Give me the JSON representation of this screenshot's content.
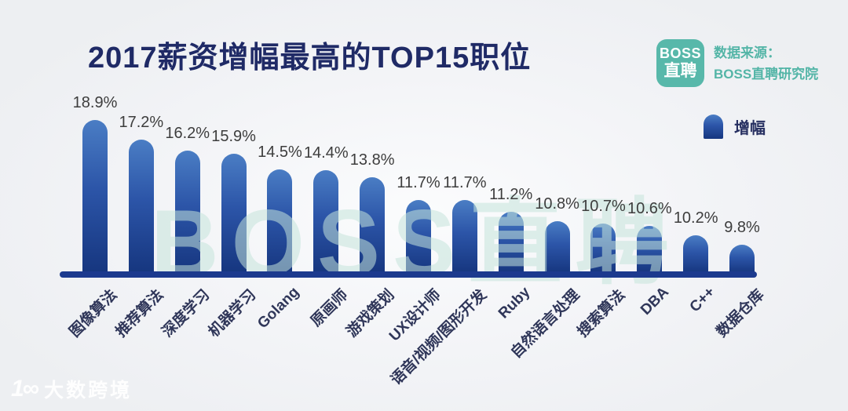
{
  "page": {
    "title": "2017薪资增幅最高的TOP15职位"
  },
  "source": {
    "logo_line1": "BOSS",
    "logo_line2": "直聘",
    "label_line1": "数据来源：",
    "label_line2": "BOSS直聘研究院"
  },
  "legend": {
    "label": "增幅"
  },
  "watermark": {
    "text": "BOSS直聘"
  },
  "footer": {
    "glyph": "1∞",
    "brand": "大数跨境"
  },
  "colors": {
    "background": "#eef0f3",
    "title_navy": "#1f2a66",
    "bar_gradient_top": "#4a7dc4",
    "bar_gradient_bottom": "#16367f",
    "axis_navy": "#1c3a8e",
    "brand_teal": "#58b8aa",
    "value_label_gray": "#3d3d3d",
    "category_label_navy": "#2f3659",
    "watermark_teal": "#c5e3da"
  },
  "chart_data": {
    "type": "bar",
    "title": "2017薪资增幅最高的TOP15职位",
    "categories": [
      "图像算法",
      "推荐算法",
      "深度学习",
      "机器学习",
      "Golang",
      "原画师",
      "游戏策划",
      "UX设计师",
      "语音/视频/图形开发",
      "Ruby",
      "自然语言处理",
      "搜索算法",
      "DBA",
      "C++",
      "数据仓库"
    ],
    "values": [
      18.9,
      17.2,
      16.2,
      15.9,
      14.5,
      14.4,
      13.8,
      11.7,
      11.7,
      11.2,
      10.8,
      10.7,
      10.6,
      10.2,
      9.8
    ],
    "labels": [
      "18.9%",
      "17.2%",
      "16.2%",
      "15.9%",
      "14.5%",
      "14.4%",
      "13.8%",
      "11.7%",
      "11.7%",
      "11.2%",
      "10.8%",
      "10.7%",
      "10.6%",
      "10.2%",
      "9.8%"
    ],
    "xlabel": "",
    "ylabel": "增幅",
    "ylim": [
      0,
      20
    ],
    "grid": false,
    "legend_entries": [
      "增幅"
    ],
    "legend_position": "top-right",
    "value_labels_shown": true,
    "category_label_rotation_deg": 45
  }
}
